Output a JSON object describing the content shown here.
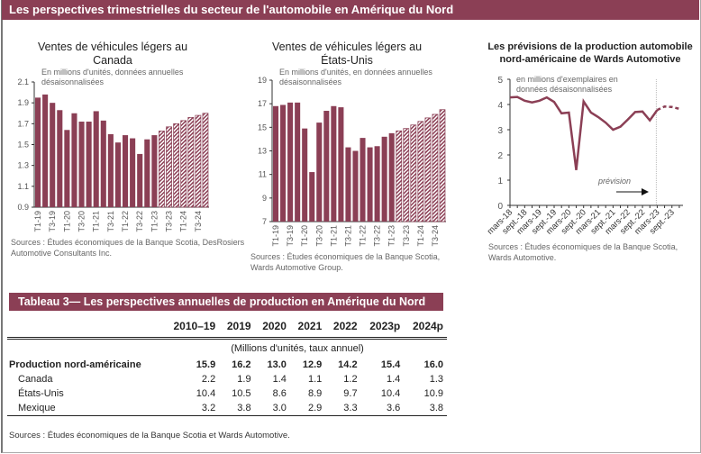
{
  "header": {
    "title": "Les perspectives trimestrielles du secteur de l'automobile en Amérique du Nord"
  },
  "colors": {
    "brand": "#8b3f55"
  },
  "chart_data": [
    {
      "type": "bar",
      "title": "Ventes de véhicules légers au Canada",
      "note": "En millions d'unités, données annuelles désaisonnalisées",
      "source": "Sources : Études économiques de la Banque Scotia, DesRosiers Automotive Consultants Inc.",
      "categories": [
        "T1-19",
        "T2-19",
        "T3-19",
        "T4-19",
        "T1-20",
        "T2-20",
        "T3-20",
        "T4-20",
        "T1-21",
        "T2-21",
        "T3-21",
        "T4-21",
        "T1-22",
        "T2-22",
        "T3-22",
        "T4-22",
        "T1-23",
        "T2-23",
        "T3-23",
        "T4-23",
        "T1-24",
        "T2-24",
        "T3-24",
        "T4-24"
      ],
      "tick_labels": [
        "T1-19",
        "T3-19",
        "T1-20",
        "T3-20",
        "T1-21",
        "T3-21",
        "T1-22",
        "T3-22",
        "T1-23",
        "T3-23",
        "T1-24",
        "T3-24"
      ],
      "values": [
        1.95,
        1.98,
        1.9,
        1.83,
        1.64,
        1.8,
        1.72,
        1.72,
        1.82,
        1.73,
        1.6,
        1.52,
        1.59,
        1.56,
        1.41,
        1.55,
        1.59,
        1.63,
        1.67,
        1.7,
        1.73,
        1.76,
        1.78,
        1.8
      ],
      "forecast_from": "T2-23",
      "ylim": [
        0.9,
        2.1
      ],
      "yticks": [
        "0.9",
        "1.1",
        "1.3",
        "1.5",
        "1.7",
        "1.9",
        "2.1"
      ]
    },
    {
      "type": "bar",
      "title": "Ventes de véhicules légers au États-Unis",
      "note": "En millions d'unités, en données annuelles désaisonnalisées",
      "source": "Sources : Études économiques de la Banque Scotia, Wards Automotive Group.",
      "categories": [
        "T1-19",
        "T2-19",
        "T3-19",
        "T4-19",
        "T1-20",
        "T2-20",
        "T3-20",
        "T4-20",
        "T1-21",
        "T2-21",
        "T3-21",
        "T4-21",
        "T1-22",
        "T2-22",
        "T3-22",
        "T4-22",
        "T1-23",
        "T2-23",
        "T3-23",
        "T4-23",
        "T1-24",
        "T2-24",
        "T3-24",
        "T4-24"
      ],
      "tick_labels": [
        "T1-19",
        "T3-19",
        "T1-20",
        "T3-20",
        "T1-21",
        "T3-21",
        "T1-22",
        "T3-22",
        "T1-23",
        "T3-23",
        "T1-24",
        "T3-24"
      ],
      "values": [
        16.8,
        16.9,
        17.1,
        17.1,
        14.9,
        11.2,
        15.4,
        16.4,
        16.8,
        16.7,
        13.3,
        13.0,
        14.1,
        13.3,
        13.4,
        14.2,
        14.5,
        14.7,
        14.9,
        15.2,
        15.5,
        15.8,
        16.1,
        16.5
      ],
      "forecast_from": "T2-23",
      "ylim": [
        7,
        19
      ],
      "yticks": [
        "7",
        "9",
        "11",
        "13",
        "15",
        "17",
        "19"
      ]
    },
    {
      "type": "line",
      "title": "Les prévisions de la production automobile nord-américaine de Wards Automotive",
      "note": "en millions d'exemplaires en données désaisonnalisées",
      "source": "Sources : Études économiques de la Banque Scotia, Wards Automotive.",
      "x": [
        "mars-18",
        "juin-18",
        "sept.-18",
        "déc.-18",
        "mars-19",
        "juin-19",
        "sept.-19",
        "déc.-19",
        "mars-20",
        "juin-20",
        "sept.-20",
        "déc.-20",
        "mars-21",
        "juin-21",
        "sept.-21",
        "déc.-21",
        "mars-22",
        "juin-22",
        "sept.-22",
        "déc.-22",
        "mars-23",
        "juin-23",
        "sept.-23",
        "déc.-23"
      ],
      "values": [
        4.28,
        4.3,
        4.15,
        4.08,
        4.15,
        4.28,
        4.1,
        3.65,
        3.68,
        1.4,
        4.12,
        3.68,
        3.5,
        3.28,
        3.0,
        3.12,
        3.4,
        3.7,
        3.72,
        3.37,
        3.78,
        3.92,
        3.9,
        3.83
      ],
      "forecast_from": "mars-23",
      "forecast_label": "prévision",
      "tick_labels": [
        "mars-18",
        "sept.-18",
        "mars-19",
        "sept.-19",
        "mars-20",
        "sept.-20",
        "mars-21",
        "sept.-21",
        "mars-22",
        "sept.-22",
        "mars-23",
        "sept.-23"
      ],
      "ylim": [
        0,
        5
      ],
      "yticks": [
        "0",
        "1",
        "2",
        "3",
        "4",
        "5"
      ]
    }
  ],
  "table": {
    "title": "Tableau 3— Les perspectives annuelles de production en Amérique du Nord",
    "columns": [
      "2010–19",
      "2019",
      "2020",
      "2021",
      "2022",
      "2023p",
      "2024p"
    ],
    "unit": "(Millions d'unités, taux annuel)",
    "rows": [
      {
        "label": "Production nord-américaine",
        "values": [
          "15.9",
          "16.2",
          "13.0",
          "12.9",
          "14.2",
          "15.4",
          "16.0"
        ]
      },
      {
        "label": "Canada",
        "values": [
          "2.2",
          "1.9",
          "1.4",
          "1.1",
          "1.2",
          "1.4",
          "1.3"
        ]
      },
      {
        "label": "États-Unis",
        "values": [
          "10.4",
          "10.5",
          "8.6",
          "8.9",
          "9.7",
          "10.4",
          "10.9"
        ]
      },
      {
        "label": "Mexique",
        "values": [
          "3.2",
          "3.8",
          "3.0",
          "2.9",
          "3.3",
          "3.6",
          "3.8"
        ]
      }
    ],
    "source": "Sources : Études économiques de la Banque Scotia et Wards Automotive."
  }
}
